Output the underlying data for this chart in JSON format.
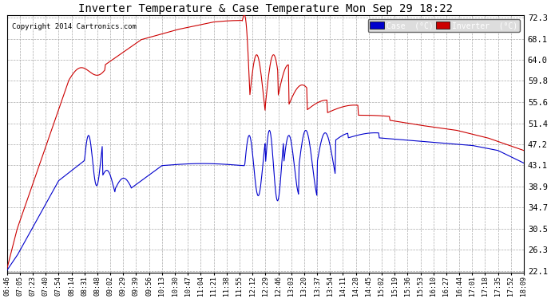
{
  "title": "Inverter Temperature & Case Temperature Mon Sep 29 18:22",
  "copyright": "Copyright 2014 Cartronics.com",
  "bg_color": "#ffffff",
  "plot_bg_color": "#ffffff",
  "yticks": [
    22.1,
    26.3,
    30.5,
    34.7,
    38.9,
    43.1,
    47.2,
    51.4,
    55.6,
    59.8,
    64.0,
    68.1,
    72.3
  ],
  "xtick_labels": [
    "06:46",
    "07:05",
    "07:23",
    "07:40",
    "07:54",
    "08:14",
    "08:31",
    "08:48",
    "09:02",
    "09:29",
    "09:39",
    "09:56",
    "10:13",
    "10:30",
    "10:47",
    "11:04",
    "11:21",
    "11:38",
    "11:55",
    "12:12",
    "12:29",
    "12:46",
    "13:03",
    "13:20",
    "13:37",
    "13:54",
    "14:11",
    "14:28",
    "14:45",
    "15:02",
    "15:19",
    "15:36",
    "15:53",
    "16:10",
    "16:27",
    "16:44",
    "17:01",
    "17:18",
    "17:35",
    "17:52",
    "18:09"
  ],
  "case_color": "#0000cc",
  "inverter_color": "#cc0000",
  "legend_case_bg": "#0000cc",
  "legend_inverter_bg": "#cc0000",
  "legend_case_label": "Case  (°C)",
  "legend_inverter_label": "Inverter  (°C)",
  "grid_color": "#aaaaaa",
  "ymin": 22.1,
  "ymax": 72.3
}
